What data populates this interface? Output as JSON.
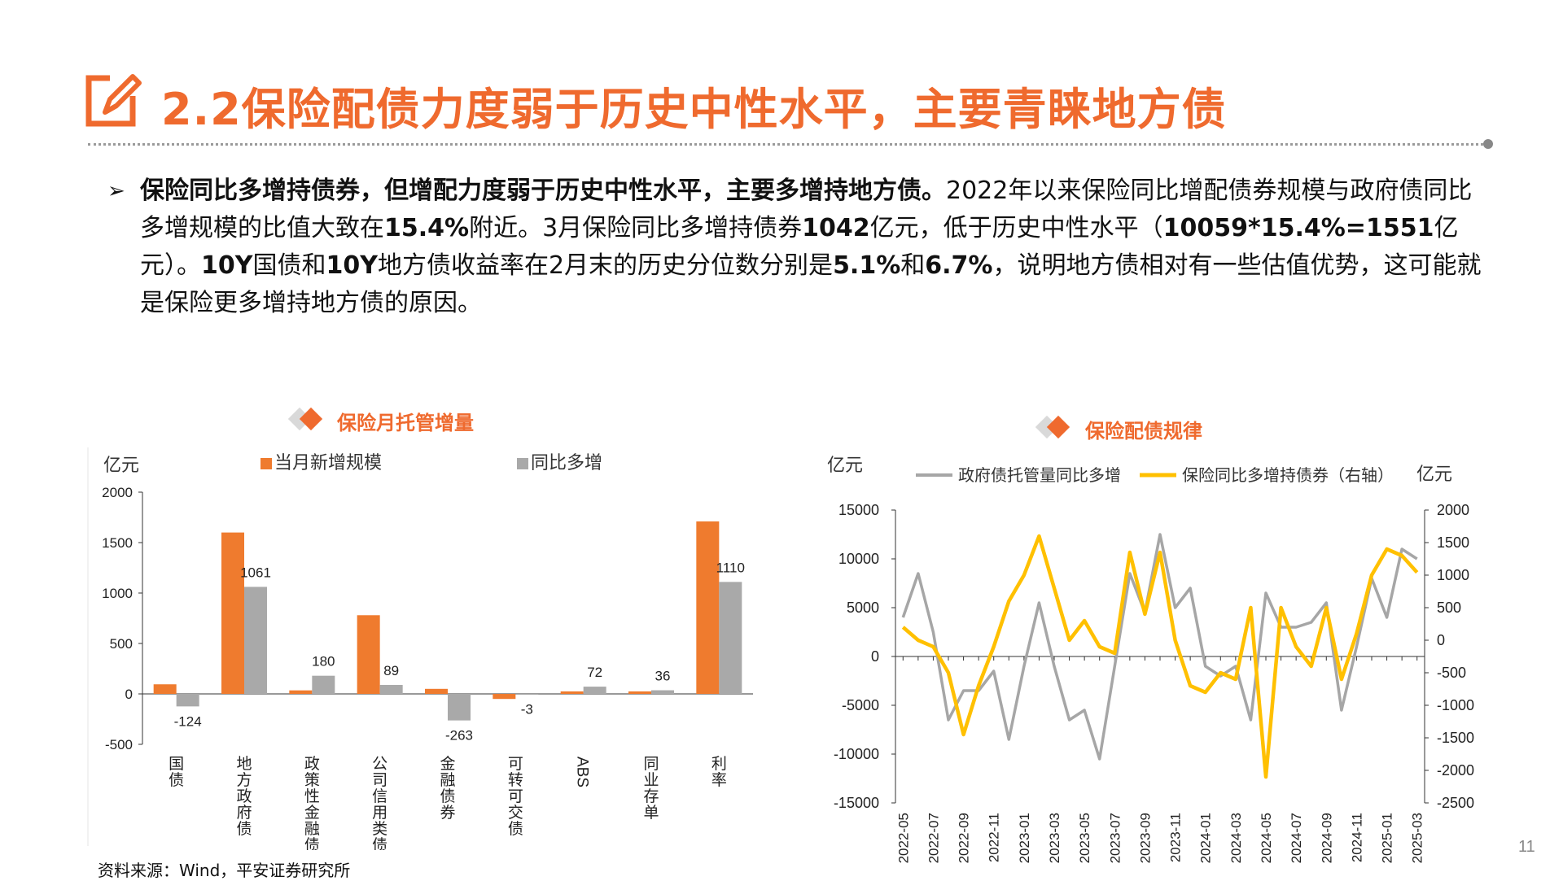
{
  "header": {
    "title": "2.2保险配债力度弱于历史中性水平，主要青睐地方债",
    "icon": "edit-pencil-icon",
    "accent_color": "#EF6A2E"
  },
  "bullet": {
    "bold_lead": "保险同比多增持债券，但增配力度弱于历史中性水平，主要多增持地方债。",
    "p1": "2022年以来保险同比增配债券规模与政府债同比多增规模的比值大致在",
    "p1_bold": "15.4%",
    "p2": "附近。3月保险同比多增持债券",
    "p2_bold": "1042",
    "p3": "亿元，低于历史中性水平（",
    "p3_bold": "10059*15.4%=1551",
    "p4": "亿元）。",
    "p4_bold": "10Y",
    "p5": "国债和",
    "p5_bold": "10Y",
    "p6": "地方债收益率在2月末的历史分位数分别是",
    "p6_bold1": "5.1%",
    "p6_mid": "和",
    "p6_bold2": "6.7%",
    "p7": "，说明地方债相对有一些估值优势，这可能就是保险更多增持地方债的原因。"
  },
  "chart_data": [
    {
      "type": "bar",
      "title": "保险月托管增量",
      "ylabel": "亿元",
      "ylim": [
        -500,
        2000
      ],
      "yticks": [
        "-500",
        "0",
        "500",
        "1000",
        "1500",
        "2000"
      ],
      "categories": [
        "国债",
        "地方政府债",
        "政策性金融债",
        "公司信用类债",
        "金融债券",
        "可转可交债",
        "ABS",
        "同业存单",
        "利率"
      ],
      "series": [
        {
          "name": "当月新增规模",
          "color": "#EF7B2E",
          "values": [
            95,
            1600,
            35,
            780,
            50,
            -50,
            25,
            25,
            1710
          ]
        },
        {
          "name": "同比多增",
          "color": "#A9A9A9",
          "values": [
            -124,
            1061,
            180,
            89,
            -263,
            -3,
            72,
            36,
            1110
          ]
        }
      ],
      "data_labels": [
        "-124",
        "1061",
        "180",
        "89",
        "-263",
        "-3",
        "72",
        "36",
        "1110"
      ],
      "legend_position": "top"
    },
    {
      "type": "line",
      "title": "保险配债规律",
      "ylabel_left": "亿元",
      "ylabel_right": "亿元",
      "ylim_left": [
        -15000,
        15000
      ],
      "ylim_right": [
        -2500,
        2000
      ],
      "yticks_left": [
        "15000",
        "10000",
        "5000",
        "0",
        "-5000",
        "-10000",
        "-15000"
      ],
      "yticks_right": [
        "2000",
        "1500",
        "1000",
        "500",
        "0",
        "-500",
        "-1000",
        "-1500",
        "-2000",
        "-2500"
      ],
      "x_ticks": [
        "2022-05",
        "2022-07",
        "2022-09",
        "2022-11",
        "2023-01",
        "2023-03",
        "2023-05",
        "2023-07",
        "2023-09",
        "2023-11",
        "2024-01",
        "2024-03",
        "2024-05",
        "2024-07",
        "2024-09",
        "2024-11",
        "2025-01",
        "2025-03"
      ],
      "x": [
        "2022-05",
        "2022-06",
        "2022-07",
        "2022-08",
        "2022-09",
        "2022-10",
        "2022-11",
        "2022-12",
        "2023-01",
        "2023-02",
        "2023-03",
        "2023-04",
        "2023-05",
        "2023-06",
        "2023-07",
        "2023-08",
        "2023-09",
        "2023-10",
        "2023-11",
        "2023-12",
        "2024-01",
        "2024-02",
        "2024-03",
        "2024-04",
        "2024-05",
        "2024-06",
        "2024-07",
        "2024-08",
        "2024-09",
        "2024-10",
        "2024-11",
        "2024-12",
        "2025-01",
        "2025-02",
        "2025-03"
      ],
      "series": [
        {
          "name": "政府债托管量同比多增",
          "axis": "left",
          "color": "#A6A6A6",
          "values": [
            4000,
            8500,
            2500,
            -6500,
            -3500,
            -3500,
            -1500,
            -8500,
            -1000,
            5500,
            -1000,
            -6500,
            -5500,
            -10500,
            -1000,
            8500,
            4500,
            12500,
            5000,
            7000,
            -1000,
            -2000,
            -1000,
            -6500,
            6500,
            3000,
            3000,
            3500,
            5500,
            -5500,
            1000,
            8000,
            4000,
            11000,
            10000
          ]
        },
        {
          "name": "保险同比多增持债券（右轴）",
          "axis": "right",
          "color": "#FFC000",
          "values": [
            200,
            0,
            -100,
            -500,
            -1450,
            -700,
            -100,
            600,
            1000,
            1600,
            800,
            0,
            300,
            -100,
            -200,
            1350,
            400,
            1350,
            0,
            -700,
            -800,
            -500,
            -600,
            500,
            -2100,
            500,
            -100,
            -400,
            500,
            -600,
            100,
            1000,
            1400,
            1300,
            1042
          ]
        }
      ],
      "legend_position": "top"
    }
  ],
  "source": "资料来源：Wind，平安证券研究所",
  "page_number": "11"
}
